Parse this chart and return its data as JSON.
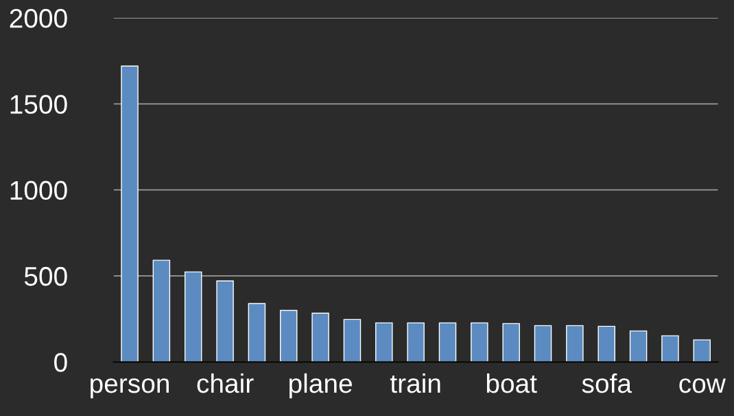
{
  "chart_data": {
    "type": "bar",
    "categories": [
      "person",
      null,
      null,
      "chair",
      null,
      null,
      "plane",
      null,
      null,
      "train",
      null,
      null,
      "boat",
      null,
      null,
      "sofa",
      null,
      null,
      "cow"
    ],
    "values": [
      1720,
      591,
      523,
      471,
      339,
      299,
      283,
      247,
      227,
      227,
      227,
      227,
      223,
      211,
      211,
      207,
      180,
      152,
      128
    ],
    "color": "#5b8bc0",
    "ylim": [
      0,
      2000
    ],
    "yticks": [
      0,
      500,
      1000,
      1500,
      2000
    ],
    "grid": "y"
  }
}
